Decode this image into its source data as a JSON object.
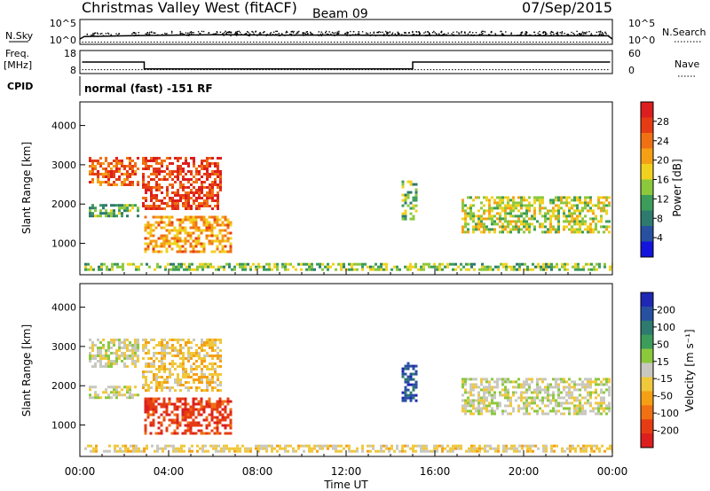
{
  "header": {
    "site": "Christmas Valley West (fitACF)",
    "beam": "Beam 09",
    "date": "07/Sep/2015"
  },
  "panels": {
    "nsky_label": "N.Sky",
    "nsky_ticks": [
      "10^5",
      "10^0"
    ],
    "nsearch_label": "N.Search",
    "nsearch_ticks": [
      "10^5",
      "10^0"
    ],
    "freq_label": "Freq.",
    "freq_unit": "[MHz]",
    "freq_ticks": [
      "18",
      "8"
    ],
    "nave_label": "Nave",
    "nave_ticks": [
      "60",
      "0"
    ],
    "cpid_label": "CPID",
    "cpid_text": "normal (fast) -151 RF"
  },
  "axes": {
    "xlabel": "Time UT",
    "ylabel": "Slant Range [km]",
    "x_ticks": [
      "00:00",
      "04:00",
      "08:00",
      "12:00",
      "16:00",
      "20:00",
      "00:00"
    ],
    "y_ticks": [
      "4000",
      "3000",
      "2000",
      "1000"
    ]
  },
  "colorbars": {
    "power": {
      "label": "Power [dB]",
      "ticks": [
        "28",
        "24",
        "20",
        "16",
        "12",
        "8",
        "4"
      ],
      "colors": [
        "#1414dc",
        "#2850a0",
        "#2e7a6e",
        "#3c9c5a",
        "#8cc83c",
        "#f0d21e",
        "#f5a014",
        "#f07014",
        "#e63c14",
        "#dc1e1e"
      ]
    },
    "velocity": {
      "label": "Velocity [m s⁻¹]",
      "ticks": [
        "200",
        "100",
        "50",
        "15",
        "-15",
        "-50",
        "-100",
        "-200"
      ],
      "colors": [
        "#1e28b4",
        "#2850a0",
        "#2e7a6e",
        "#3c9c5a",
        "#8cc83c",
        "#c8c8c0",
        "#f0c83c",
        "#f5a014",
        "#f07014",
        "#e63c14",
        "#dc1e1e"
      ]
    }
  },
  "chart_data": [
    {
      "type": "line",
      "name": "N.Sky / N.Search",
      "x_hours": [
        0,
        0.2,
        3,
        6,
        9,
        12,
        15,
        18,
        21,
        23.8,
        24
      ],
      "nsky_log": [
        0,
        0.7,
        1.0,
        1.2,
        1.1,
        1.1,
        1.0,
        1.0,
        0.9,
        0.9,
        0
      ]
    },
    {
      "type": "line",
      "name": "Freq / Nave",
      "freq_segments_mhz": [
        {
          "start_hours": 0.1,
          "end_hours": 2.9,
          "value": 13
        },
        {
          "start_hours": 2.9,
          "end_hours": 15.0,
          "value": 10
        },
        {
          "start_hours": 15.0,
          "end_hours": 23.9,
          "value": 13
        }
      ],
      "nave": 10
    },
    {
      "type": "heatmap",
      "name": "Power",
      "x_range_hours": [
        0,
        24
      ],
      "y_range_km": [
        200,
        4600
      ],
      "clim_db": [
        0,
        30
      ],
      "regions": [
        {
          "hour_start": 0.4,
          "hour_end": 2.6,
          "range_start_km": 2500,
          "range_end_km": 3200,
          "level": 24
        },
        {
          "hour_start": 0.4,
          "hour_end": 2.6,
          "range_start_km": 1700,
          "range_end_km": 2000,
          "level": 11
        },
        {
          "hour_start": 2.8,
          "hour_end": 6.3,
          "range_start_km": 1900,
          "range_end_km": 3200,
          "level": 26
        },
        {
          "hour_start": 2.9,
          "hour_end": 6.8,
          "range_start_km": 800,
          "range_end_km": 1700,
          "level": 20
        },
        {
          "hour_start": 0.2,
          "hour_end": 24,
          "range_start_km": 300,
          "range_end_km": 500,
          "level": 13
        },
        {
          "hour_start": 14.5,
          "hour_end": 15.2,
          "range_start_km": 1600,
          "range_end_km": 2600,
          "level": 12
        },
        {
          "hour_start": 17.2,
          "hour_end": 23.9,
          "range_start_km": 1300,
          "range_end_km": 2200,
          "level": 15
        }
      ]
    },
    {
      "type": "heatmap",
      "name": "Velocity",
      "x_range_hours": [
        0,
        24
      ],
      "y_range_km": [
        200,
        4600
      ],
      "clim_ms": [
        -200,
        200
      ],
      "regions": [
        {
          "hour_start": 0.4,
          "hour_end": 2.6,
          "range_start_km": 2500,
          "range_end_km": 3200,
          "level": 0
        },
        {
          "hour_start": 0.4,
          "hour_end": 2.6,
          "range_start_km": 1700,
          "range_end_km": 2000,
          "level": 0
        },
        {
          "hour_start": 2.8,
          "hour_end": 6.3,
          "range_start_km": 1900,
          "range_end_km": 3200,
          "level": -40
        },
        {
          "hour_start": 2.9,
          "hour_end": 6.8,
          "range_start_km": 800,
          "range_end_km": 1700,
          "level": -150
        },
        {
          "hour_start": 0.2,
          "hour_end": 24,
          "range_start_km": 300,
          "range_end_km": 500,
          "level": -30
        },
        {
          "hour_start": 14.5,
          "hour_end": 15.2,
          "range_start_km": 1600,
          "range_end_km": 2600,
          "level": 150
        },
        {
          "hour_start": 17.2,
          "hour_end": 23.9,
          "range_start_km": 1300,
          "range_end_km": 2200,
          "level": 0
        }
      ]
    }
  ]
}
